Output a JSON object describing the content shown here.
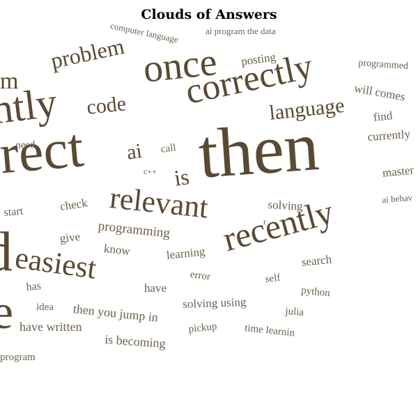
{
  "title": "Clouds of Answers",
  "colors": {
    "word": "#5a4a34",
    "small_word": "#6e5f4c",
    "title": "#000000",
    "background": "#ffffff"
  },
  "words": [
    {
      "text": "then"
    },
    {
      "text": "correctly"
    },
    {
      "text": "rrect"
    },
    {
      "text": "once"
    },
    {
      "text": "ntly"
    },
    {
      "text": "recently"
    },
    {
      "text": "relevant"
    },
    {
      "text": "easiest"
    },
    {
      "text": "d"
    },
    {
      "text": "problem"
    },
    {
      "text": "m"
    },
    {
      "text": "language"
    },
    {
      "text": "code"
    },
    {
      "text": "is"
    },
    {
      "text": "ai"
    },
    {
      "text": "computer language"
    },
    {
      "text": "ai program the data"
    },
    {
      "text": "posting"
    },
    {
      "text": "programmed"
    },
    {
      "text": "will comes"
    },
    {
      "text": "find"
    },
    {
      "text": "currently"
    },
    {
      "text": "need"
    },
    {
      "text": "call"
    },
    {
      "text": "c++"
    },
    {
      "text": "master"
    },
    {
      "text": "ai behav"
    },
    {
      "text": "start"
    },
    {
      "text": "check"
    },
    {
      "text": "solving"
    },
    {
      "text": "r"
    },
    {
      "text": "programming"
    },
    {
      "text": "give"
    },
    {
      "text": "know"
    },
    {
      "text": "learning"
    },
    {
      "text": "search"
    },
    {
      "text": "error"
    },
    {
      "text": "self"
    },
    {
      "text": "has"
    },
    {
      "text": "have"
    },
    {
      "text": "python"
    },
    {
      "text": "e"
    },
    {
      "text": "idea"
    },
    {
      "text": "then you jump in"
    },
    {
      "text": "solving using"
    },
    {
      "text": "julia"
    },
    {
      "text": "have written"
    },
    {
      "text": "pickup"
    },
    {
      "text": "time learnin"
    },
    {
      "text": "is becoming"
    },
    {
      "text": "program"
    }
  ]
}
